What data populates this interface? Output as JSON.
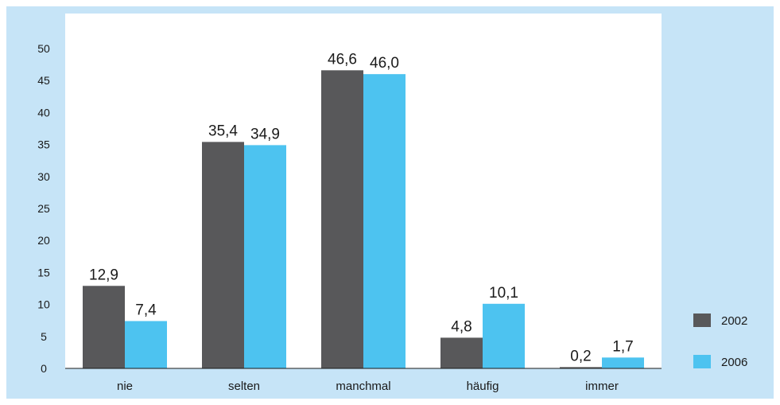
{
  "chart_data": {
    "type": "bar",
    "categories": [
      "nie",
      "selten",
      "manchmal",
      "häufig",
      "immer"
    ],
    "series": [
      {
        "name": "2002",
        "values": [
          12.9,
          35.4,
          46.6,
          4.8,
          0.2
        ],
        "labels": [
          "12,9",
          "35,4",
          "46,6",
          "4,8",
          "0,2"
        ],
        "color": "#58585a"
      },
      {
        "name": "2006",
        "values": [
          7.4,
          34.9,
          46.0,
          10.1,
          1.7
        ],
        "labels": [
          "7,4",
          "34,9",
          "46,0",
          "10,1",
          "1,7"
        ],
        "color": "#4dc3f0"
      }
    ],
    "ylim": [
      0,
      50
    ],
    "yticks": [
      0,
      5,
      10,
      15,
      20,
      25,
      30,
      35,
      40,
      45,
      50
    ],
    "title": "",
    "xlabel": "",
    "ylabel": "",
    "grid": false,
    "legend": "right",
    "colors": {
      "frame": "#c6e4f7",
      "plot_background": "#ffffff",
      "axis": "#1a1a1a"
    }
  }
}
